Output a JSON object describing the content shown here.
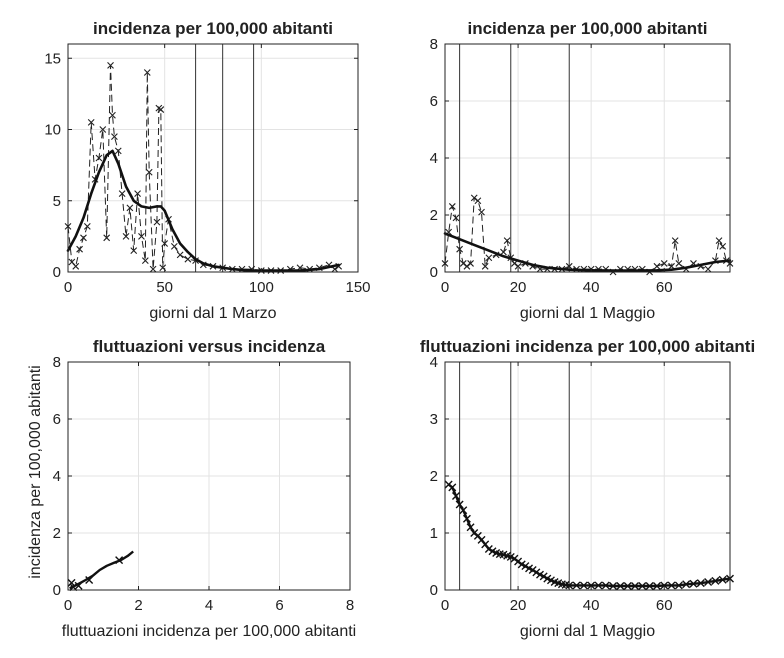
{
  "chart_data": [
    {
      "type": "line",
      "title": "incidenza per 100,000 abitanti",
      "xlabel": "giorni dal 1 Marzo",
      "ylabel": "",
      "xlim": [
        0,
        150
      ],
      "ylim": [
        0,
        16
      ],
      "xticks": [
        "0",
        "50",
        "100",
        "150"
      ],
      "yticks": [
        "0",
        "5",
        "10",
        "15"
      ],
      "grid": true,
      "vlines": [
        66,
        80,
        96
      ],
      "series": [
        {
          "style": "dashed-x",
          "x": [
            0,
            2,
            4,
            6,
            8,
            10,
            12,
            14,
            16,
            18,
            20,
            22,
            23,
            24,
            26,
            28,
            30,
            32,
            34,
            36,
            38,
            40,
            41,
            42,
            44,
            46,
            47,
            48,
            49,
            50,
            52,
            55,
            58,
            62,
            66,
            70,
            75,
            80,
            85,
            90,
            95,
            100,
            105,
            110,
            115,
            120,
            125,
            130,
            135,
            138,
            140
          ],
          "y": [
            3.2,
            0.7,
            0.4,
            1.6,
            2.4,
            3.2,
            10.5,
            6.5,
            8.0,
            10.0,
            2.4,
            14.5,
            11.0,
            9.5,
            8.5,
            5.5,
            2.5,
            4.5,
            1.5,
            5.5,
            2.5,
            0.8,
            14.0,
            7.0,
            0.2,
            3.5,
            11.5,
            11.4,
            0.3,
            2.0,
            3.7,
            1.8,
            1.2,
            0.9,
            0.8,
            0.5,
            0.4,
            0.3,
            0.2,
            0.2,
            0.2,
            0.1,
            0.1,
            0.1,
            0.2,
            0.3,
            0.2,
            0.3,
            0.5,
            0.2,
            0.4
          ]
        },
        {
          "style": "smooth",
          "x": [
            0,
            4,
            8,
            12,
            16,
            20,
            23,
            26,
            30,
            34,
            38,
            42,
            46,
            48,
            50,
            54,
            58,
            62,
            66,
            70,
            75,
            80,
            85,
            90,
            95,
            100,
            110,
            120,
            130,
            135,
            140
          ],
          "y": [
            1.5,
            2.5,
            3.8,
            5.5,
            7.0,
            8.2,
            8.5,
            7.6,
            6.0,
            5.0,
            4.6,
            4.5,
            4.6,
            4.6,
            4.3,
            3.0,
            2.0,
            1.4,
            0.9,
            0.6,
            0.4,
            0.3,
            0.2,
            0.15,
            0.1,
            0.1,
            0.1,
            0.1,
            0.2,
            0.35,
            0.5
          ]
        }
      ]
    },
    {
      "type": "line",
      "title": "incidenza per 100,000 abitanti",
      "xlabel": "giorni dal 1 Maggio",
      "ylabel": "",
      "xlim": [
        0,
        78
      ],
      "ylim": [
        0,
        8
      ],
      "xticks": [
        "0",
        "20",
        "40",
        "60"
      ],
      "yticks": [
        "0",
        "2",
        "4",
        "6",
        "8"
      ],
      "grid": true,
      "vlines": [
        4,
        18,
        34
      ],
      "series": [
        {
          "style": "dashed-x",
          "x": [
            0,
            1,
            2,
            3,
            4,
            5,
            6,
            7,
            8,
            9,
            10,
            11,
            12,
            14,
            16,
            17,
            18,
            19,
            20,
            22,
            24,
            26,
            28,
            30,
            32,
            34,
            36,
            38,
            40,
            42,
            44,
            46,
            48,
            50,
            52,
            54,
            56,
            58,
            60,
            62,
            63,
            64,
            66,
            68,
            70,
            72,
            74,
            75,
            76,
            77,
            78
          ],
          "y": [
            0.3,
            1.4,
            2.3,
            1.9,
            0.8,
            0.3,
            0.2,
            0.3,
            2.6,
            2.5,
            2.1,
            0.2,
            0.5,
            0.6,
            0.7,
            1.1,
            0.5,
            0.3,
            0.2,
            0.3,
            0.2,
            0.1,
            0.1,
            0.1,
            0.1,
            0.2,
            0.1,
            0.1,
            0.1,
            0.1,
            0.1,
            0.0,
            0.1,
            0.1,
            0.1,
            0.1,
            0.0,
            0.2,
            0.3,
            0.2,
            1.1,
            0.3,
            0.1,
            0.3,
            0.2,
            0.1,
            0.4,
            1.1,
            0.9,
            0.4,
            0.3
          ]
        },
        {
          "style": "smooth",
          "x": [
            0,
            4,
            8,
            12,
            16,
            20,
            24,
            28,
            34,
            40,
            46,
            52,
            58,
            62,
            66,
            70,
            74,
            78
          ],
          "y": [
            1.35,
            1.15,
            0.95,
            0.75,
            0.55,
            0.4,
            0.25,
            0.15,
            0.08,
            0.06,
            0.05,
            0.05,
            0.06,
            0.08,
            0.15,
            0.25,
            0.35,
            0.4
          ]
        }
      ]
    },
    {
      "type": "line",
      "title": "fluttuazioni versus incidenza",
      "xlabel": "fluttuazioni incidenza per 100,000 abitanti",
      "ylabel": "incidenza per 100,000 abitanti",
      "xlim": [
        0,
        8
      ],
      "ylim": [
        0,
        8
      ],
      "xticks": [
        "0",
        "2",
        "4",
        "6",
        "8"
      ],
      "yticks": [
        "0",
        "2",
        "4",
        "6",
        "8"
      ],
      "grid": true,
      "vlines": [],
      "series": [
        {
          "style": "solid-x",
          "x": [
            0.05,
            0.1,
            0.2,
            0.35,
            0.5,
            0.7,
            0.9,
            1.1,
            1.3,
            1.5,
            1.7,
            1.85
          ],
          "y": [
            0.05,
            0.1,
            0.15,
            0.25,
            0.35,
            0.5,
            0.7,
            0.85,
            0.95,
            1.05,
            1.2,
            1.35
          ],
          "markers_x": [
            0.1,
            0.15,
            0.3,
            0.6,
            1.45
          ],
          "markers_y": [
            0.25,
            0.1,
            0.15,
            0.35,
            1.05
          ]
        }
      ]
    },
    {
      "type": "line",
      "title": "fluttuazioni incidenza per 100,000 abitanti",
      "xlabel": "giorni dal 1 Maggio",
      "ylabel": "",
      "xlim": [
        0,
        78
      ],
      "ylim": [
        0,
        4
      ],
      "xticks": [
        "0",
        "20",
        "40",
        "60"
      ],
      "yticks": [
        "0",
        "1",
        "2",
        "3",
        "4"
      ],
      "grid": true,
      "vlines": [
        4,
        18,
        34
      ],
      "series": [
        {
          "style": "solid-x",
          "x": [
            1,
            2,
            3,
            4,
            5,
            6,
            7,
            8,
            9,
            10,
            11,
            12,
            13,
            14,
            15,
            16,
            17,
            18,
            19,
            20,
            21,
            22,
            23,
            24,
            25,
            26,
            27,
            28,
            29,
            30,
            31,
            32,
            33,
            34,
            36,
            38,
            40,
            42,
            44,
            46,
            48,
            50,
            52,
            54,
            56,
            58,
            60,
            62,
            64,
            66,
            68,
            70,
            72,
            74,
            76,
            78
          ],
          "y": [
            1.85,
            1.8,
            1.65,
            1.5,
            1.4,
            1.25,
            1.1,
            1.0,
            0.95,
            0.88,
            0.8,
            0.72,
            0.68,
            0.65,
            0.63,
            0.62,
            0.6,
            0.58,
            0.55,
            0.5,
            0.45,
            0.42,
            0.38,
            0.35,
            0.31,
            0.27,
            0.24,
            0.2,
            0.17,
            0.14,
            0.12,
            0.1,
            0.09,
            0.08,
            0.08,
            0.08,
            0.08,
            0.08,
            0.08,
            0.07,
            0.07,
            0.07,
            0.07,
            0.07,
            0.07,
            0.07,
            0.08,
            0.08,
            0.08,
            0.1,
            0.11,
            0.12,
            0.14,
            0.16,
            0.18,
            0.2
          ]
        }
      ]
    }
  ]
}
